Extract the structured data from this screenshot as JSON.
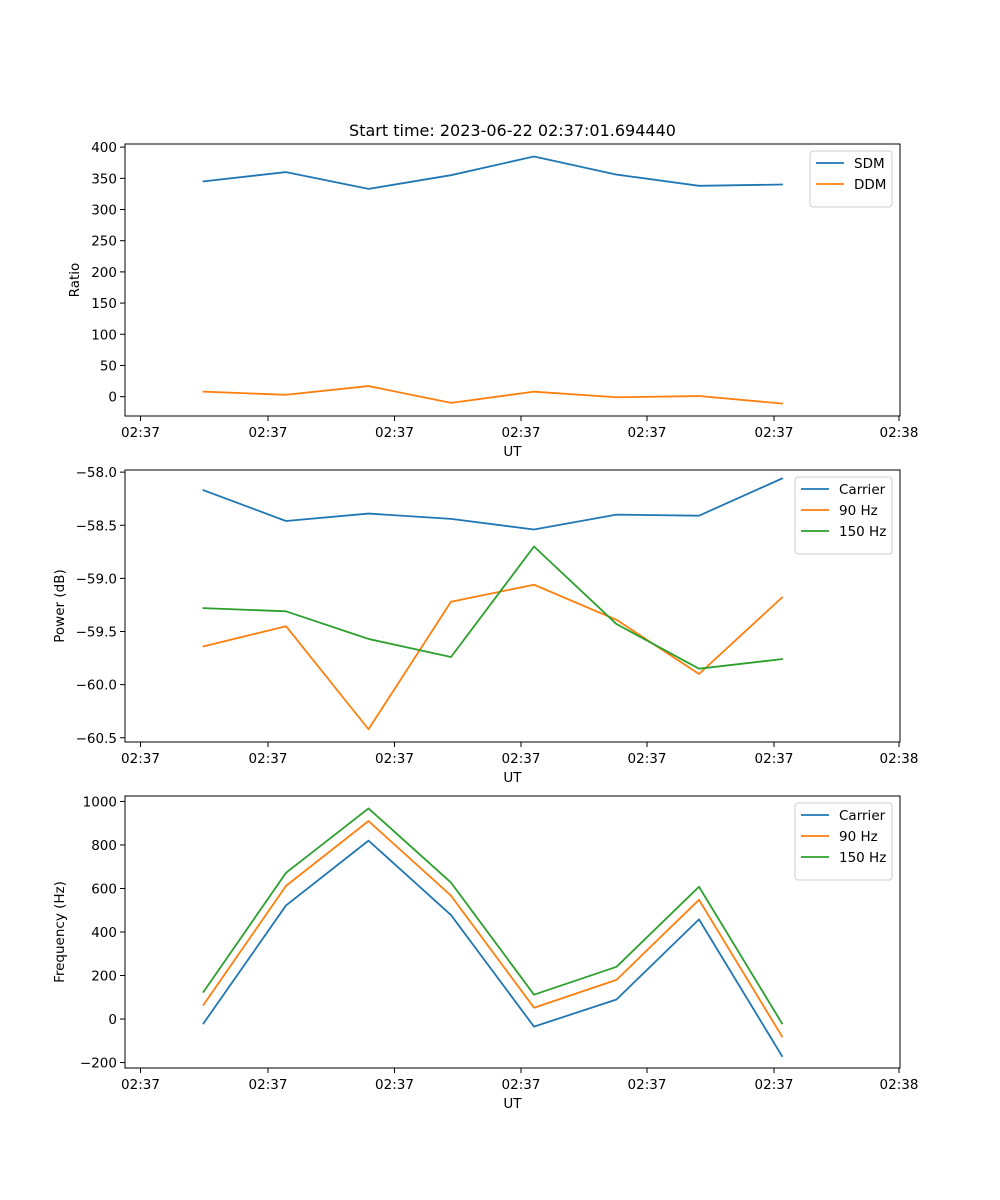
{
  "chart_data": [
    {
      "type": "line",
      "title": "Start time: 2023-06-22 02:37:01.694440",
      "xlabel": "UT",
      "ylabel": "Ratio",
      "x_tick_labels": [
        "02:37",
        "02:37",
        "02:37",
        "02:37",
        "02:37",
        "02:37",
        "02:38"
      ],
      "y_ticks": [
        0,
        50,
        100,
        150,
        200,
        250,
        300,
        350,
        400
      ],
      "ylim": [
        -31,
        405
      ],
      "legend_position": "top-right",
      "grid": false,
      "series": [
        {
          "name": "SDM",
          "color": "#1f77b4",
          "values": [
            345,
            360,
            333,
            355,
            385,
            356,
            338,
            340
          ]
        },
        {
          "name": "DDM",
          "color": "#ff7f0e",
          "values": [
            8,
            3,
            17,
            -10,
            8,
            -1,
            1,
            -11
          ]
        }
      ]
    },
    {
      "type": "line",
      "title": "",
      "xlabel": "UT",
      "ylabel": "Power (dB)",
      "x_tick_labels": [
        "02:37",
        "02:37",
        "02:37",
        "02:37",
        "02:37",
        "02:37",
        "02:38"
      ],
      "y_ticks": [
        -60.5,
        -60.0,
        -59.5,
        -59.0,
        -58.5,
        -58.0
      ],
      "y_tick_labels": [
        "−60.5",
        "−60.0",
        "−59.5",
        "−59.0",
        "−58.5",
        "−58.0"
      ],
      "ylim": [
        -60.54,
        -57.98
      ],
      "legend_position": "top-right",
      "grid": false,
      "series": [
        {
          "name": "Carrier",
          "color": "#1f77b4",
          "values": [
            -58.17,
            -58.46,
            -58.39,
            -58.44,
            -58.54,
            -58.4,
            -58.41,
            -58.06
          ]
        },
        {
          "name": "90 Hz",
          "color": "#ff7f0e",
          "values": [
            -59.64,
            -59.45,
            -60.42,
            -59.22,
            -59.06,
            -59.39,
            -59.9,
            -59.18
          ]
        },
        {
          "name": "150 Hz",
          "color": "#2ca02c",
          "values": [
            -59.28,
            -59.31,
            -59.57,
            -59.74,
            -58.7,
            -59.43,
            -59.85,
            -59.76
          ]
        }
      ]
    },
    {
      "type": "line",
      "title": "",
      "xlabel": "UT",
      "ylabel": "Frequency (Hz)",
      "x_tick_labels": [
        "02:37",
        "02:37",
        "02:37",
        "02:37",
        "02:37",
        "02:37",
        "02:38"
      ],
      "y_ticks": [
        -200,
        0,
        200,
        400,
        600,
        800,
        1000
      ],
      "y_tick_labels": [
        "−200",
        "0",
        "200",
        "400",
        "600",
        "800",
        "1000"
      ],
      "ylim": [
        -225,
        1025
      ],
      "legend_position": "top-right",
      "grid": false,
      "series": [
        {
          "name": "Carrier",
          "color": "#1f77b4",
          "values": [
            -20,
            522,
            820,
            478,
            -35,
            90,
            458,
            -170
          ]
        },
        {
          "name": "90 Hz",
          "color": "#ff7f0e",
          "values": [
            65,
            612,
            910,
            567,
            52,
            180,
            548,
            -80
          ]
        },
        {
          "name": "150 Hz",
          "color": "#2ca02c",
          "values": [
            125,
            672,
            968,
            627,
            112,
            240,
            608,
            -20
          ]
        }
      ]
    }
  ]
}
